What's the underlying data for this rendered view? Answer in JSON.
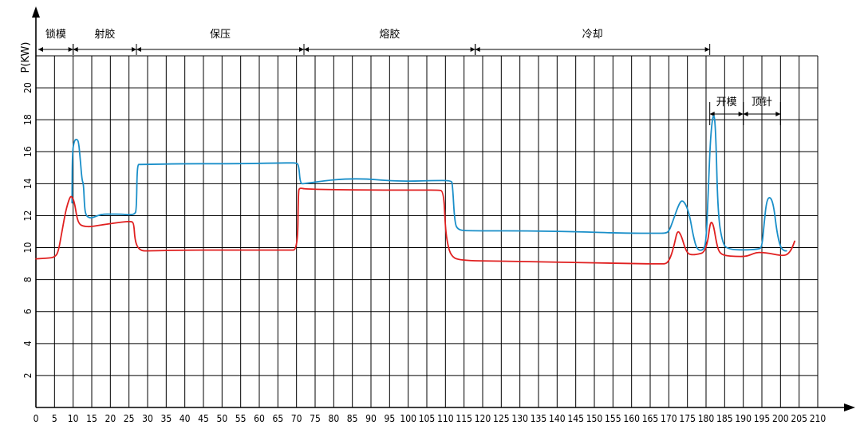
{
  "chart_data": {
    "type": "line",
    "ylabel": "P(KW)",
    "xlabel": "",
    "xlim": [
      0,
      210
    ],
    "ylim": [
      0,
      22
    ],
    "x_ticks": [
      0,
      5,
      10,
      15,
      20,
      25,
      30,
      35,
      40,
      45,
      50,
      55,
      60,
      65,
      70,
      75,
      80,
      85,
      90,
      95,
      100,
      105,
      110,
      115,
      120,
      125,
      130,
      135,
      140,
      145,
      150,
      155,
      160,
      165,
      170,
      175,
      180,
      185,
      190,
      195,
      200,
      205,
      210
    ],
    "y_ticks": [
      2,
      4,
      6,
      8,
      10,
      12,
      14,
      16,
      18,
      20
    ],
    "grid": true,
    "phases": [
      {
        "label": "锁模",
        "start": 0,
        "end": 10
      },
      {
        "label": "射胶",
        "start": 10,
        "end": 27
      },
      {
        "label": "保压",
        "start": 27,
        "end": 72
      },
      {
        "label": "熔胶",
        "start": 72,
        "end": 118
      },
      {
        "label": "冷却",
        "start": 118,
        "end": 181
      }
    ],
    "sub_phases": [
      {
        "label": "开模",
        "start": 181,
        "end": 190
      },
      {
        "label": "顶针",
        "start": 190,
        "end": 200
      }
    ],
    "series": [
      {
        "color": "#1a8fc9",
        "points": [
          [
            9.7,
            12.8
          ],
          [
            9.8,
            16.0
          ],
          [
            10.3,
            16.7
          ],
          [
            11.0,
            16.8
          ],
          [
            11.5,
            16.6
          ],
          [
            12.0,
            15.3
          ],
          [
            12.4,
            14.2
          ],
          [
            12.8,
            14.0
          ],
          [
            13.1,
            12.4
          ],
          [
            13.5,
            12.0
          ],
          [
            14.5,
            11.85
          ],
          [
            15.5,
            11.9
          ],
          [
            16.5,
            12.0
          ],
          [
            18.0,
            12.1
          ],
          [
            20.0,
            12.1
          ],
          [
            23.0,
            12.1
          ],
          [
            25.0,
            12.05
          ],
          [
            26.5,
            12.1
          ],
          [
            27.0,
            12.3
          ],
          [
            27.2,
            15.2
          ],
          [
            28.0,
            15.2
          ],
          [
            40.0,
            15.25
          ],
          [
            55.0,
            15.25
          ],
          [
            66.0,
            15.3
          ],
          [
            68.5,
            15.3
          ],
          [
            69.8,
            15.3
          ],
          [
            70.6,
            15.2
          ],
          [
            71.0,
            14.0
          ],
          [
            72.0,
            14.0
          ],
          [
            78.0,
            14.2
          ],
          [
            83.0,
            14.3
          ],
          [
            89.0,
            14.3
          ],
          [
            94.0,
            14.2
          ],
          [
            100.0,
            14.15
          ],
          [
            107.0,
            14.2
          ],
          [
            111.5,
            14.2
          ],
          [
            111.9,
            14.0
          ],
          [
            112.5,
            11.5
          ],
          [
            113.5,
            11.1
          ],
          [
            116.0,
            11.05
          ],
          [
            130.0,
            11.05
          ],
          [
            145.0,
            11.0
          ],
          [
            158.0,
            10.9
          ],
          [
            167.0,
            10.9
          ],
          [
            169.0,
            10.9
          ],
          [
            170.0,
            11.0
          ],
          [
            171.0,
            11.6
          ],
          [
            172.5,
            12.6
          ],
          [
            173.5,
            13.0
          ],
          [
            174.6,
            12.7
          ],
          [
            175.6,
            12.0
          ],
          [
            176.5,
            10.8
          ],
          [
            177.5,
            9.9
          ],
          [
            179.0,
            9.8
          ],
          [
            180.0,
            10.2
          ],
          [
            180.6,
            13.5
          ],
          [
            181.2,
            17.0
          ],
          [
            182.0,
            18.55
          ],
          [
            182.6,
            17.5
          ],
          [
            183.2,
            12.0
          ],
          [
            184.5,
            10.2
          ],
          [
            186.0,
            9.9
          ],
          [
            190.0,
            9.85
          ],
          [
            194.0,
            9.9
          ],
          [
            195.0,
            10.0
          ],
          [
            195.6,
            11.5
          ],
          [
            196.3,
            13.0
          ],
          [
            197.3,
            13.2
          ],
          [
            198.2,
            12.6
          ],
          [
            199.0,
            11.0
          ],
          [
            200.0,
            10.0
          ],
          [
            201.0,
            9.8
          ],
          [
            201.6,
            9.8
          ]
        ]
      },
      {
        "color": "#e02020",
        "points": [
          [
            0.0,
            9.3
          ],
          [
            3.5,
            9.35
          ],
          [
            5.0,
            9.4
          ],
          [
            6.0,
            9.7
          ],
          [
            7.0,
            11.0
          ],
          [
            8.0,
            12.3
          ],
          [
            9.0,
            13.1
          ],
          [
            9.6,
            13.25
          ],
          [
            10.4,
            12.8
          ],
          [
            11.0,
            11.9
          ],
          [
            11.6,
            11.5
          ],
          [
            12.5,
            11.35
          ],
          [
            14.5,
            11.3
          ],
          [
            17.0,
            11.4
          ],
          [
            20.0,
            11.5
          ],
          [
            23.0,
            11.6
          ],
          [
            25.5,
            11.65
          ],
          [
            26.3,
            11.55
          ],
          [
            26.6,
            10.5
          ],
          [
            27.3,
            10.0
          ],
          [
            28.5,
            9.8
          ],
          [
            30.0,
            9.8
          ],
          [
            40.0,
            9.85
          ],
          [
            55.0,
            9.85
          ],
          [
            68.0,
            9.85
          ],
          [
            70.3,
            9.85
          ],
          [
            70.5,
            13.5
          ],
          [
            70.8,
            13.75
          ],
          [
            72.5,
            13.65
          ],
          [
            90.0,
            13.6
          ],
          [
            104.0,
            13.6
          ],
          [
            108.0,
            13.6
          ],
          [
            109.5,
            13.55
          ],
          [
            110.0,
            11.2
          ],
          [
            110.6,
            10.2
          ],
          [
            111.5,
            9.5
          ],
          [
            113.5,
            9.2
          ],
          [
            125.0,
            9.15
          ],
          [
            140.0,
            9.1
          ],
          [
            160.0,
            9.0
          ],
          [
            168.0,
            8.98
          ],
          [
            169.5,
            9.0
          ],
          [
            170.5,
            9.4
          ],
          [
            171.5,
            10.2
          ],
          [
            172.3,
            11.1
          ],
          [
            173.3,
            10.8
          ],
          [
            174.3,
            10.0
          ],
          [
            175.2,
            9.6
          ],
          [
            176.5,
            9.55
          ],
          [
            178.0,
            9.6
          ],
          [
            179.5,
            9.7
          ],
          [
            180.5,
            10.4
          ],
          [
            181.0,
            11.4
          ],
          [
            181.5,
            11.65
          ],
          [
            182.1,
            11.3
          ],
          [
            182.8,
            10.3
          ],
          [
            183.5,
            9.7
          ],
          [
            185.0,
            9.5
          ],
          [
            188.0,
            9.45
          ],
          [
            190.5,
            9.45
          ],
          [
            192.0,
            9.55
          ],
          [
            193.5,
            9.7
          ],
          [
            195.0,
            9.7
          ],
          [
            197.0,
            9.65
          ],
          [
            199.0,
            9.55
          ],
          [
            201.0,
            9.5
          ],
          [
            202.0,
            9.6
          ],
          [
            203.0,
            9.9
          ],
          [
            203.8,
            10.4
          ]
        ]
      }
    ]
  }
}
